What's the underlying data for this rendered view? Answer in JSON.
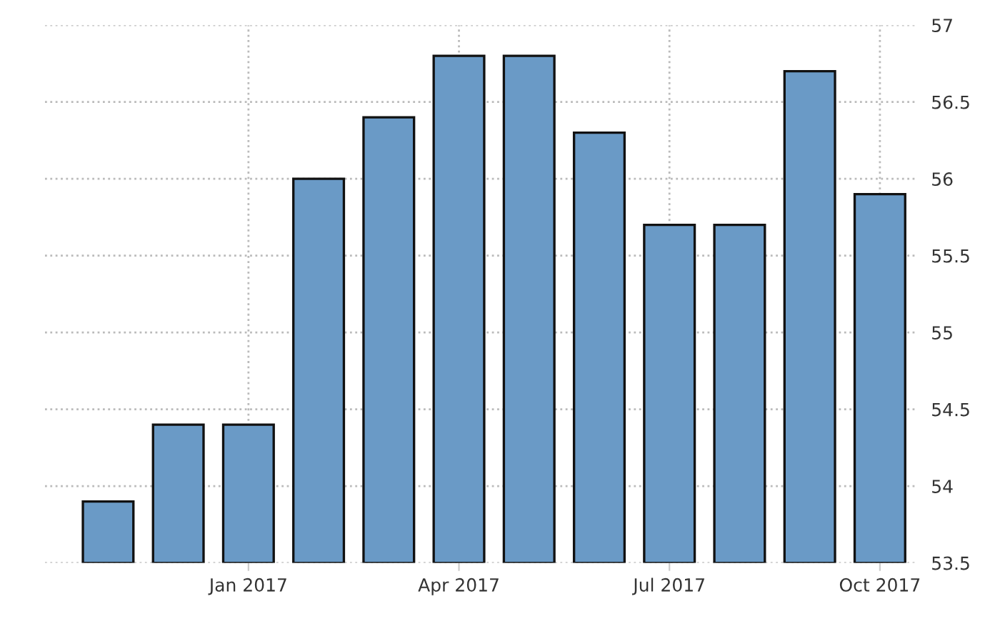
{
  "chart_data": {
    "type": "bar",
    "categories": [
      null,
      null,
      "Jan 2017",
      null,
      null,
      "Apr 2017",
      null,
      null,
      "Jul 2017",
      null,
      null,
      "Oct 2017"
    ],
    "values": [
      53.9,
      54.4,
      54.4,
      56.0,
      56.4,
      56.8,
      56.8,
      56.3,
      55.7,
      55.7,
      56.7,
      55.9
    ],
    "color": "#6a9ac6",
    "ylim": [
      53.5,
      57
    ],
    "yticks": [
      53.5,
      54,
      54.5,
      55,
      55.5,
      56,
      56.5,
      57
    ],
    "grid": true
  }
}
